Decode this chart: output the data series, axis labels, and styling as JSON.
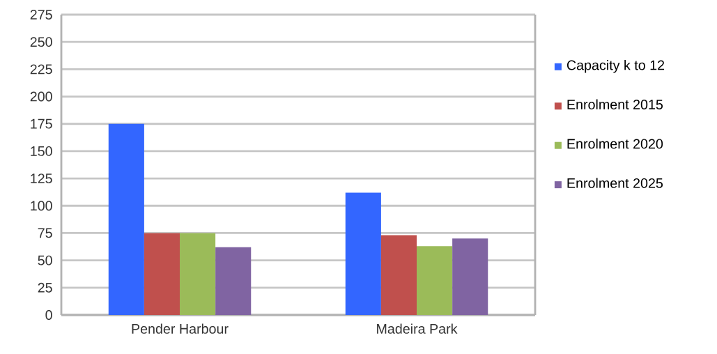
{
  "chart_data": {
    "type": "bar",
    "categories": [
      "Pender Harbour",
      "Madeira Park"
    ],
    "series": [
      {
        "name": "Capacity k to 12",
        "color": "#3366ff",
        "values": [
          175,
          112
        ]
      },
      {
        "name": "Enrolment 2015",
        "color": "#c0504d",
        "values": [
          75,
          73
        ]
      },
      {
        "name": "Enrolment 2020",
        "color": "#9bbb59",
        "values": [
          75,
          63
        ]
      },
      {
        "name": "Enrolment 2025",
        "color": "#8064a2",
        "values": [
          62,
          70
        ]
      }
    ],
    "ylim": [
      0,
      275
    ],
    "yticks": [
      0,
      25,
      50,
      75,
      100,
      125,
      150,
      175,
      200,
      225,
      250,
      275
    ],
    "grid": "y",
    "legend": "right"
  }
}
